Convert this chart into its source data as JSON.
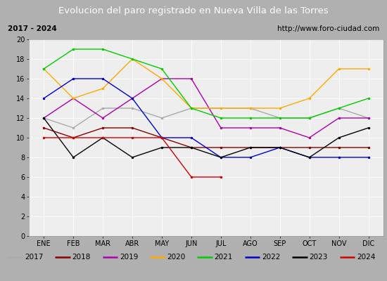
{
  "title": "Evolucion del paro registrado en Nueva Villa de las Torres",
  "subtitle_left": "2017 - 2024",
  "subtitle_right": "http://www.foro-ciudad.com",
  "months": [
    "ENE",
    "FEB",
    "MAR",
    "ABR",
    "MAY",
    "JUN",
    "JUL",
    "AGO",
    "SEP",
    "OCT",
    "NOV",
    "DIC"
  ],
  "ylim": [
    0,
    20
  ],
  "yticks": [
    0,
    2,
    4,
    6,
    8,
    10,
    12,
    14,
    16,
    18,
    20
  ],
  "series": {
    "2017": {
      "color": "#aaaaaa",
      "values": [
        12,
        11,
        13,
        13,
        12,
        13,
        13,
        13,
        12,
        12,
        13,
        12
      ]
    },
    "2018": {
      "color": "#880000",
      "values": [
        11,
        10,
        11,
        11,
        10,
        9,
        9,
        9,
        9,
        9,
        9,
        9
      ]
    },
    "2019": {
      "color": "#aa00aa",
      "values": [
        12,
        14,
        12,
        14,
        16,
        16,
        11,
        11,
        11,
        10,
        12,
        12
      ]
    },
    "2020": {
      "color": "#ffaa00",
      "values": [
        17,
        14,
        15,
        18,
        16,
        13,
        13,
        13,
        13,
        14,
        17,
        17
      ]
    },
    "2021": {
      "color": "#00cc00",
      "values": [
        17,
        19,
        19,
        18,
        17,
        13,
        12,
        12,
        12,
        12,
        13,
        14
      ]
    },
    "2022": {
      "color": "#0000cc",
      "values": [
        14,
        16,
        16,
        14,
        10,
        10,
        8,
        8,
        9,
        8,
        8,
        8
      ]
    },
    "2023": {
      "color": "#000000",
      "values": [
        12,
        8,
        10,
        8,
        9,
        9,
        8,
        9,
        9,
        8,
        10,
        11
      ]
    },
    "2024": {
      "color": "#cc0000",
      "values": [
        10,
        10,
        10,
        10,
        10,
        6,
        6,
        null,
        null,
        null,
        null,
        null
      ]
    }
  },
  "title_bg_color": "#3366cc",
  "title_font_color": "#ffffff",
  "subtitle_bg_color": "#dddddd",
  "plot_bg_color": "#eeeeee",
  "grid_color": "#ffffff",
  "legend_bg_color": "#e0e0e0",
  "outer_bg_color": "#b0b0b0"
}
